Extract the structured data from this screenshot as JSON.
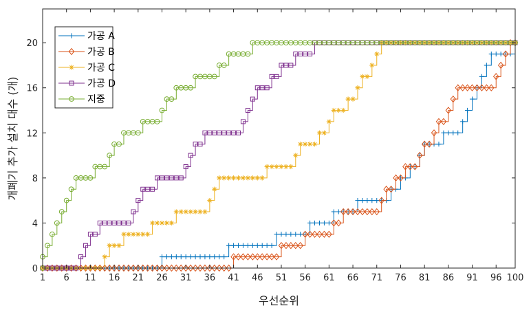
{
  "chart_data": {
    "type": "line",
    "xlabel": "우선순위",
    "ylabel": "개폐기 추가 설치 대수 (개)",
    "xlim": [
      1,
      100
    ],
    "ylim": [
      0,
      23
    ],
    "xticks": [
      1,
      6,
      11,
      16,
      21,
      26,
      31,
      36,
      41,
      46,
      51,
      56,
      61,
      66,
      71,
      76,
      81,
      86,
      91,
      96,
      100
    ],
    "yticks": [
      0,
      4,
      8,
      12,
      16,
      20
    ],
    "grid": false,
    "legend_position": "top-left",
    "series": [
      {
        "name": "가공 A",
        "color": "#0072BD",
        "marker": "plus",
        "points": [
          [
            1,
            0
          ],
          [
            26,
            0
          ],
          [
            26,
            1
          ],
          [
            40,
            1
          ],
          [
            40,
            2
          ],
          [
            50,
            2
          ],
          [
            50,
            3
          ],
          [
            57,
            3
          ],
          [
            57,
            4
          ],
          [
            62,
            4
          ],
          [
            62,
            5
          ],
          [
            67,
            5
          ],
          [
            67,
            6
          ],
          [
            74,
            6
          ],
          [
            74,
            7
          ],
          [
            76,
            7
          ],
          [
            76,
            8
          ],
          [
            78,
            8
          ],
          [
            78,
            9
          ],
          [
            80,
            9
          ],
          [
            80,
            10
          ],
          [
            81,
            10
          ],
          [
            81,
            11
          ],
          [
            85,
            11
          ],
          [
            85,
            12
          ],
          [
            89,
            12
          ],
          [
            89,
            13
          ],
          [
            90,
            13
          ],
          [
            90,
            14
          ],
          [
            91,
            14
          ],
          [
            91,
            15
          ],
          [
            92,
            15
          ],
          [
            92,
            16
          ],
          [
            93,
            16
          ],
          [
            93,
            17
          ],
          [
            94,
            17
          ],
          [
            94,
            18
          ],
          [
            95,
            18
          ],
          [
            95,
            19
          ],
          [
            100,
            19
          ],
          [
            100,
            20
          ]
        ]
      },
      {
        "name": "가공 B",
        "color": "#D95319",
        "marker": "diamond",
        "points": [
          [
            1,
            0
          ],
          [
            41,
            0
          ],
          [
            41,
            1
          ],
          [
            51,
            1
          ],
          [
            51,
            2
          ],
          [
            56,
            2
          ],
          [
            56,
            3
          ],
          [
            62,
            3
          ],
          [
            62,
            4
          ],
          [
            64,
            4
          ],
          [
            64,
            5
          ],
          [
            72,
            5
          ],
          [
            72,
            6
          ],
          [
            73,
            6
          ],
          [
            73,
            7
          ],
          [
            75,
            7
          ],
          [
            75,
            8
          ],
          [
            77,
            8
          ],
          [
            77,
            9
          ],
          [
            80,
            9
          ],
          [
            80,
            10
          ],
          [
            81,
            10
          ],
          [
            81,
            11
          ],
          [
            83,
            11
          ],
          [
            83,
            12
          ],
          [
            84,
            12
          ],
          [
            84,
            13
          ],
          [
            86,
            13
          ],
          [
            86,
            14
          ],
          [
            87,
            14
          ],
          [
            87,
            15
          ],
          [
            88,
            15
          ],
          [
            88,
            16
          ],
          [
            96,
            16
          ],
          [
            96,
            17
          ],
          [
            97,
            17
          ],
          [
            97,
            18
          ],
          [
            98,
            18
          ],
          [
            98,
            19
          ],
          [
            99,
            19
          ],
          [
            99,
            20
          ],
          [
            100,
            20
          ]
        ]
      },
      {
        "name": "가공 C",
        "color": "#EDB120",
        "marker": "asterisk",
        "points": [
          [
            1,
            0
          ],
          [
            14,
            0
          ],
          [
            14,
            1
          ],
          [
            15,
            1
          ],
          [
            15,
            2
          ],
          [
            18,
            2
          ],
          [
            18,
            3
          ],
          [
            24,
            3
          ],
          [
            24,
            4
          ],
          [
            29,
            4
          ],
          [
            29,
            5
          ],
          [
            36,
            5
          ],
          [
            36,
            6
          ],
          [
            37,
            6
          ],
          [
            37,
            7
          ],
          [
            38,
            7
          ],
          [
            38,
            8
          ],
          [
            48,
            8
          ],
          [
            48,
            9
          ],
          [
            54,
            9
          ],
          [
            54,
            10
          ],
          [
            55,
            10
          ],
          [
            55,
            11
          ],
          [
            59,
            11
          ],
          [
            59,
            12
          ],
          [
            61,
            12
          ],
          [
            61,
            13
          ],
          [
            62,
            13
          ],
          [
            62,
            14
          ],
          [
            65,
            14
          ],
          [
            65,
            15
          ],
          [
            67,
            15
          ],
          [
            67,
            16
          ],
          [
            68,
            16
          ],
          [
            68,
            17
          ],
          [
            70,
            17
          ],
          [
            70,
            18
          ],
          [
            71,
            18
          ],
          [
            71,
            19
          ],
          [
            72,
            19
          ],
          [
            72,
            20
          ],
          [
            100,
            20
          ]
        ]
      },
      {
        "name": "가공 D",
        "color": "#7E2F8E",
        "marker": "square",
        "points": [
          [
            1,
            0
          ],
          [
            9,
            0
          ],
          [
            9,
            1
          ],
          [
            10,
            1
          ],
          [
            10,
            2
          ],
          [
            11,
            2
          ],
          [
            11,
            3
          ],
          [
            13,
            3
          ],
          [
            13,
            4
          ],
          [
            20,
            4
          ],
          [
            20,
            5
          ],
          [
            21,
            5
          ],
          [
            21,
            6
          ],
          [
            22,
            6
          ],
          [
            22,
            7
          ],
          [
            25,
            7
          ],
          [
            25,
            8
          ],
          [
            31,
            8
          ],
          [
            31,
            9
          ],
          [
            32,
            9
          ],
          [
            32,
            10
          ],
          [
            33,
            10
          ],
          [
            33,
            11
          ],
          [
            35,
            11
          ],
          [
            35,
            12
          ],
          [
            43,
            12
          ],
          [
            43,
            13
          ],
          [
            44,
            13
          ],
          [
            44,
            14
          ],
          [
            45,
            14
          ],
          [
            45,
            15
          ],
          [
            46,
            15
          ],
          [
            46,
            16
          ],
          [
            49,
            16
          ],
          [
            49,
            17
          ],
          [
            51,
            17
          ],
          [
            51,
            18
          ],
          [
            54,
            18
          ],
          [
            54,
            19
          ],
          [
            58,
            19
          ],
          [
            58,
            20
          ],
          [
            100,
            20
          ]
        ]
      },
      {
        "name": "지중",
        "color": "#77AC30",
        "marker": "circle",
        "points": [
          [
            1,
            0
          ],
          [
            1,
            1
          ],
          [
            2,
            1
          ],
          [
            2,
            2
          ],
          [
            3,
            2
          ],
          [
            3,
            3
          ],
          [
            4,
            3
          ],
          [
            4,
            4
          ],
          [
            5,
            4
          ],
          [
            5,
            5
          ],
          [
            6,
            5
          ],
          [
            6,
            6
          ],
          [
            7,
            6
          ],
          [
            7,
            7
          ],
          [
            8,
            7
          ],
          [
            8,
            8
          ],
          [
            12,
            8
          ],
          [
            12,
            9
          ],
          [
            15,
            9
          ],
          [
            15,
            10
          ],
          [
            16,
            10
          ],
          [
            16,
            11
          ],
          [
            18,
            11
          ],
          [
            18,
            12
          ],
          [
            22,
            12
          ],
          [
            22,
            13
          ],
          [
            26,
            13
          ],
          [
            26,
            14
          ],
          [
            27,
            14
          ],
          [
            27,
            15
          ],
          [
            29,
            15
          ],
          [
            29,
            16
          ],
          [
            33,
            16
          ],
          [
            33,
            17
          ],
          [
            38,
            17
          ],
          [
            38,
            18
          ],
          [
            40,
            18
          ],
          [
            40,
            19
          ],
          [
            45,
            19
          ],
          [
            45,
            20
          ],
          [
            100,
            20
          ]
        ]
      }
    ]
  }
}
